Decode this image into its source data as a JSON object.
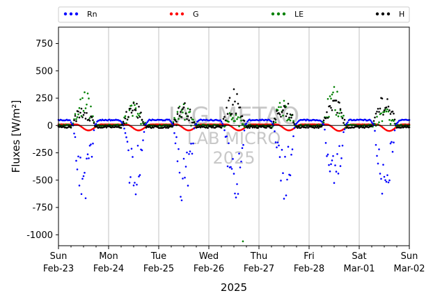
{
  "chart_data": {
    "type": "scatter",
    "xlabel": "2025",
    "ylabel": "Fluxes [W/m²]",
    "ylim": [
      -1100,
      900
    ],
    "yticks": [
      750,
      500,
      250,
      0,
      -250,
      -500,
      -750,
      -1000
    ],
    "xlim_days": [
      0,
      7
    ],
    "x_ticks": [
      {
        "day": "Sun",
        "date": "Feb-23"
      },
      {
        "day": "Mon",
        "date": "Feb-24"
      },
      {
        "day": "Tue",
        "date": "Feb-25"
      },
      {
        "day": "Wed",
        "date": "Feb-26"
      },
      {
        "day": "Thu",
        "date": "Feb-27"
      },
      {
        "day": "Fri",
        "date": "Feb-28"
      },
      {
        "day": "Sat",
        "date": "Mar-01"
      },
      {
        "day": "Sun",
        "date": "Mar-02"
      }
    ],
    "grid": "vertical",
    "zero_line": true,
    "legend": "top",
    "watermark": [
      "IAG METAO",
      "LAB MICRO",
      "2025"
    ],
    "series": [
      {
        "name": "Rn",
        "color": "#0000ff",
        "day_peak": [
          -830,
          -700,
          -780,
          -770,
          -730,
          -800,
          -750
        ],
        "night_level": 50
      },
      {
        "name": "G",
        "color": "#ff0000",
        "day_min": [
          -45,
          -45,
          -45,
          -45,
          -45,
          -50,
          -50
        ],
        "night_level": 10
      },
      {
        "name": "LE",
        "color": "#008000",
        "day_max": [
          370,
          240,
          235,
          150,
          265,
          385,
          200
        ],
        "outlier_min": -1060
      },
      {
        "name": "H",
        "color": "#000000",
        "day_max": [
          230,
          260,
          240,
          365,
          260,
          290,
          340
        ],
        "night_level": -15
      }
    ]
  }
}
